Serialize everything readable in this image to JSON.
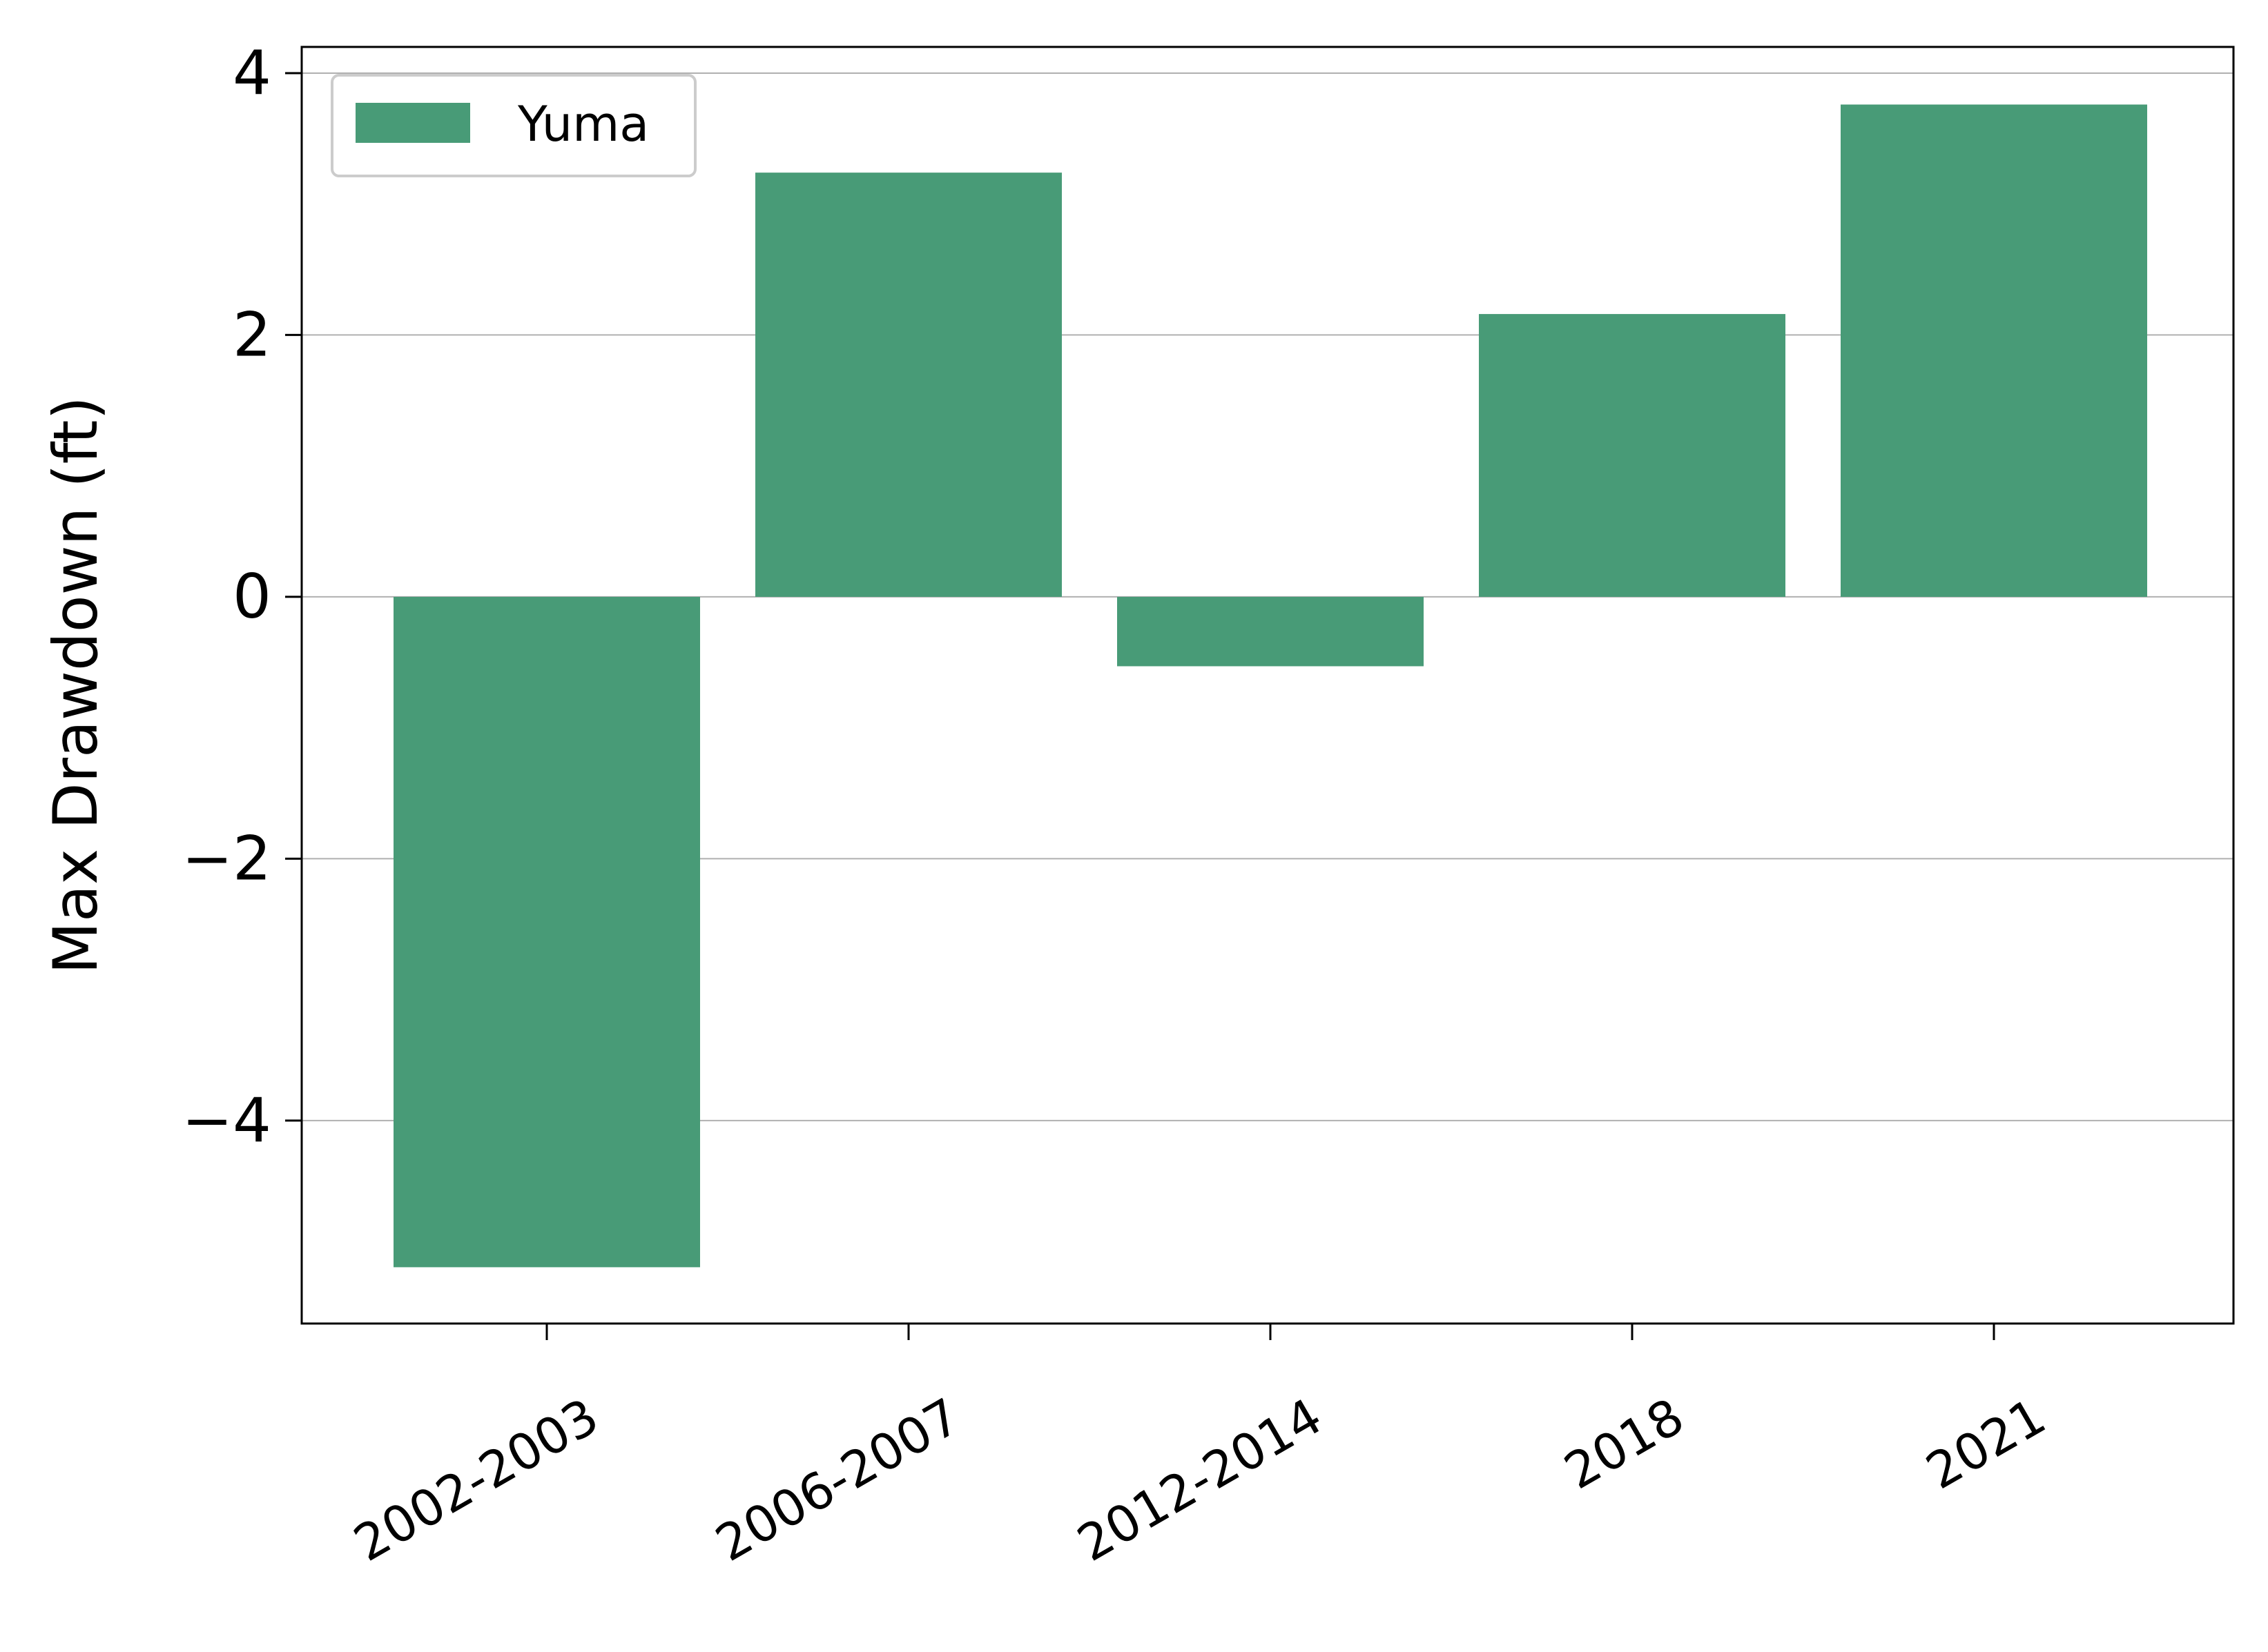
{
  "chart_data": {
    "type": "bar",
    "title": "",
    "xlabel": "",
    "ylabel": "Max Drawdown (ft)",
    "categories": [
      "2002-2003",
      "2006-2007",
      "2012-2014",
      "2018",
      "2021"
    ],
    "series": [
      {
        "name": "Yuma",
        "values": [
          -5.12,
          3.24,
          -0.53,
          2.16,
          3.76
        ],
        "color": "#489b77"
      }
    ],
    "yticks": [
      -4,
      -2,
      0,
      2,
      4
    ],
    "ytick_labels": [
      "−4",
      "−2",
      "0",
      "2",
      "4"
    ],
    "ylim": [
      -5.55,
      4.2
    ],
    "grid": "horizontal",
    "grid_color": "#b0b0b0",
    "legend": {
      "position": "top-left",
      "entries": [
        "Yuma"
      ]
    },
    "xtick_rotation": 30
  }
}
